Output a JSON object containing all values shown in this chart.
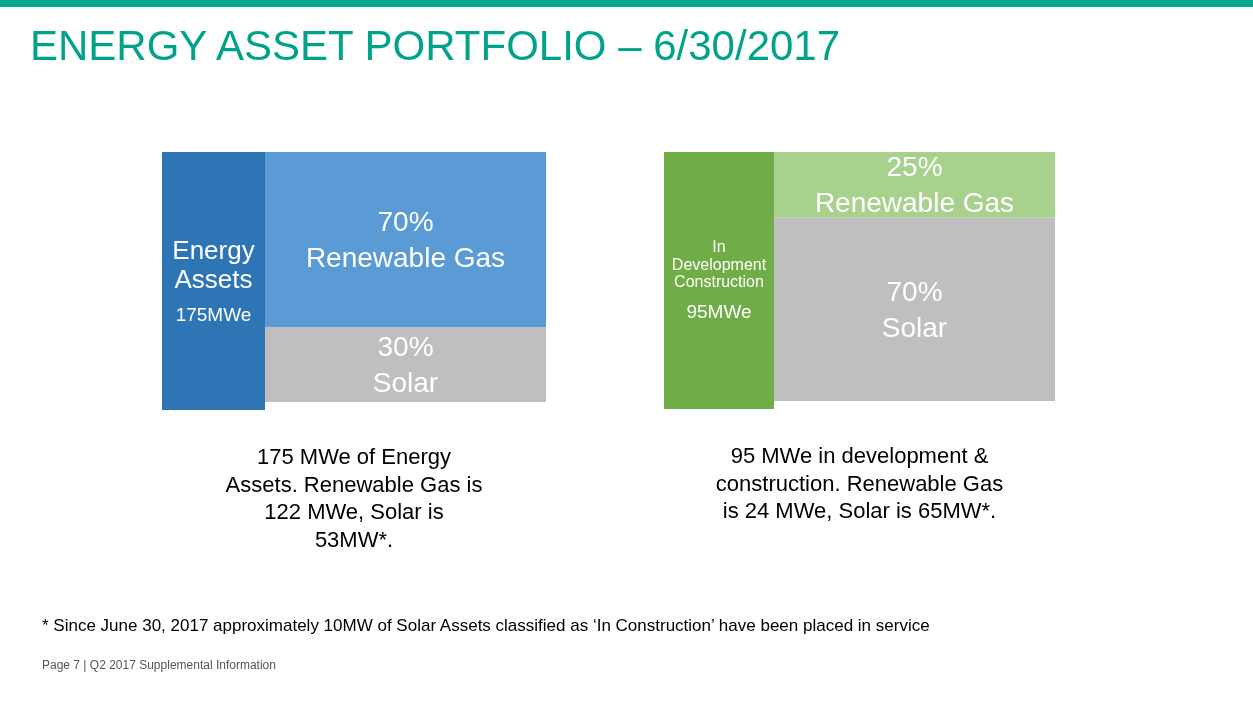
{
  "chart_data": [
    {
      "type": "other",
      "title": "ENERGY ASSET PORTFOLIO – 6/30/2017",
      "annotations": [
        "* Since June 30, 2017 approximately 10MW of Solar Assets classified as ‘In Construction’ have been placed in service",
        "Page 7 | Q2 2017 Supplemental Information"
      ]
    },
    {
      "type": "bar",
      "title": "Energy Assets",
      "subtitle": "175MWe",
      "categories": [
        null
      ],
      "stacked": true,
      "series": [
        {
          "name": "Solar",
          "color": "#bfbfbf",
          "values": [
            30
          ],
          "value_labels": [
            "30%"
          ]
        },
        {
          "name": "Renewable Gas",
          "color": "#5b9bd5",
          "values": [
            70
          ],
          "value_labels": [
            "70%"
          ]
        }
      ],
      "annotations": [
        "175 MWe of Energy Assets. Renewable Gas is 122 MWe, Solar is 53MW*."
      ]
    },
    {
      "type": "bar",
      "title": "In Development Construction",
      "subtitle": "95MWe",
      "categories": [
        null
      ],
      "stacked": true,
      "series": [
        {
          "name": "Solar",
          "color": "#bfbfbf",
          "values": [
            70
          ],
          "value_labels": [
            "70%"
          ]
        },
        {
          "name": "Renewable Gas",
          "color": "#a9d18e",
          "values": [
            25
          ],
          "value_labels": [
            "25%"
          ]
        }
      ],
      "annotations": [
        "95 MWe in development & construction. Renewable Gas is 24 MWe, Solar is 65MW*."
      ]
    }
  ]
}
